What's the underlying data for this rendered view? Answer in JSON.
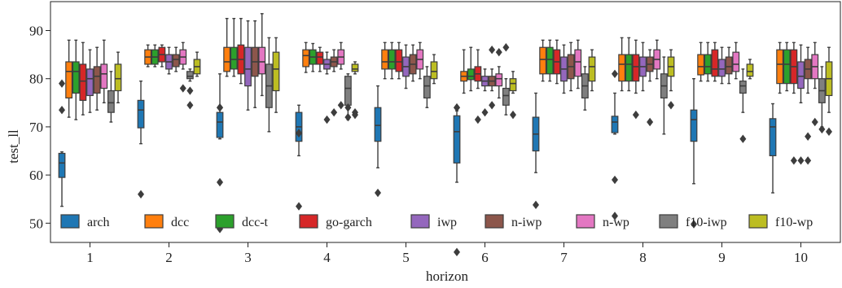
{
  "chart_data": {
    "type": "box",
    "xlabel": "horizon",
    "ylabel": "test_ll",
    "ylim": [
      46,
      96
    ],
    "yticks": [
      50,
      60,
      70,
      80,
      90
    ],
    "categories": [
      "1",
      "2",
      "3",
      "4",
      "5",
      "6",
      "7",
      "8",
      "9",
      "10"
    ],
    "grid": false,
    "legend_position": "bottom-left",
    "series": [
      {
        "name": "arch",
        "color": "#1f77b4",
        "boxes": [
          {
            "whislo": 53.5,
            "q1": 59.5,
            "med": 62.5,
            "q3": 64.5,
            "whishi": 64.8,
            "fliers": [
              73.5,
              79
            ]
          },
          {
            "whislo": 66.5,
            "q1": 69.8,
            "med": 73.5,
            "q3": 75.5,
            "whishi": 79.5,
            "fliers": [
              56
            ]
          },
          {
            "whislo": 67.5,
            "q1": 67.8,
            "med": 71,
            "q3": 73,
            "whishi": 81,
            "fliers": [
              58.5,
              48.8,
              74,
              74
            ]
          },
          {
            "whislo": 64,
            "q1": 67,
            "med": 70,
            "q3": 73,
            "whishi": 74.5,
            "fliers": [
              68.7,
              68.7,
              53.5
            ]
          },
          {
            "whislo": 61.5,
            "q1": 67,
            "med": 70.3,
            "q3": 74,
            "whishi": 78.5,
            "fliers": [
              56.3
            ]
          },
          {
            "whislo": 58.5,
            "q1": 62.5,
            "med": 69,
            "q3": 72.3,
            "whishi": 73.3,
            "fliers": [
              74,
              74,
              44
            ]
          },
          {
            "whislo": 60.5,
            "q1": 65,
            "med": 68.5,
            "q3": 72,
            "whishi": 77,
            "fliers": [
              53.8
            ]
          },
          {
            "whislo": 68.5,
            "q1": 68.8,
            "med": 71,
            "q3": 72.2,
            "whishi": 77,
            "fliers": [
              59,
              51.5,
              81
            ]
          },
          {
            "whislo": 58.2,
            "q1": 67,
            "med": 71.5,
            "q3": 73.5,
            "whishi": 80,
            "fliers": [
              49.8
            ]
          },
          {
            "whislo": 56.3,
            "q1": 64,
            "med": 70,
            "q3": 71.7,
            "whishi": 74.8,
            "fliers": []
          }
        ]
      },
      {
        "name": "dcc",
        "color": "#ff7f0e",
        "boxes": [
          {
            "whislo": 72,
            "q1": 76,
            "med": 81.5,
            "q3": 83.5,
            "whishi": 88,
            "fliers": []
          },
          {
            "whislo": 82.5,
            "q1": 83,
            "med": 84.5,
            "q3": 86,
            "whishi": 87,
            "fliers": []
          },
          {
            "whislo": 80.5,
            "q1": 81.5,
            "med": 83.5,
            "q3": 86.5,
            "whishi": 92.5,
            "fliers": []
          },
          {
            "whislo": 81.3,
            "q1": 82.5,
            "med": 84.8,
            "q3": 86,
            "whishi": 87.5,
            "fliers": []
          },
          {
            "whislo": 80,
            "q1": 82,
            "med": 83.5,
            "q3": 86,
            "whishi": 87.5,
            "fliers": []
          },
          {
            "whislo": 77,
            "q1": 79.5,
            "med": 80.5,
            "q3": 81.5,
            "whishi": 86,
            "fliers": []
          },
          {
            "whislo": 79.5,
            "q1": 81,
            "med": 84,
            "q3": 86.5,
            "whishi": 88,
            "fliers": []
          },
          {
            "whislo": 77.5,
            "q1": 79.5,
            "med": 83,
            "q3": 85,
            "whishi": 88.5,
            "fliers": []
          },
          {
            "whislo": 79.5,
            "q1": 80.8,
            "med": 82.5,
            "q3": 85,
            "whishi": 87.5,
            "fliers": []
          },
          {
            "whislo": 77,
            "q1": 79,
            "med": 83,
            "q3": 86,
            "whishi": 87.5,
            "fliers": []
          }
        ]
      },
      {
        "name": "dcc-t",
        "color": "#2ca02c",
        "boxes": [
          {
            "whislo": 71.5,
            "q1": 77,
            "med": 81.5,
            "q3": 83.5,
            "whishi": 88,
            "fliers": []
          },
          {
            "whislo": 82.5,
            "q1": 83,
            "med": 84.5,
            "q3": 86,
            "whishi": 87,
            "fliers": []
          },
          {
            "whislo": 80.5,
            "q1": 82,
            "med": 84,
            "q3": 86.5,
            "whishi": 92.5,
            "fliers": []
          },
          {
            "whislo": 81.5,
            "q1": 83,
            "med": 84.5,
            "q3": 86,
            "whishi": 87.3,
            "fliers": []
          },
          {
            "whislo": 80,
            "q1": 82,
            "med": 83.5,
            "q3": 86,
            "whishi": 87.5,
            "fliers": []
          },
          {
            "whislo": 77.5,
            "q1": 79.8,
            "med": 80.5,
            "q3": 82,
            "whishi": 86.5,
            "fliers": []
          },
          {
            "whislo": 79.5,
            "q1": 81,
            "med": 84,
            "q3": 86.5,
            "whishi": 88,
            "fliers": []
          },
          {
            "whislo": 77.5,
            "q1": 79.5,
            "med": 83,
            "q3": 85,
            "whishi": 88.5,
            "fliers": []
          },
          {
            "whislo": 79.5,
            "q1": 81,
            "med": 82.5,
            "q3": 85,
            "whishi": 87.5,
            "fliers": []
          },
          {
            "whislo": 77.5,
            "q1": 79,
            "med": 83,
            "q3": 86,
            "whishi": 87.5,
            "fliers": []
          }
        ]
      },
      {
        "name": "go-garch",
        "color": "#d62728",
        "boxes": [
          {
            "whislo": 72.5,
            "q1": 75.5,
            "med": 79.5,
            "q3": 83,
            "whishi": 87.5,
            "fliers": []
          },
          {
            "whislo": 82.5,
            "q1": 83.5,
            "med": 85,
            "q3": 86.5,
            "whishi": 87,
            "fliers": []
          },
          {
            "whislo": 79,
            "q1": 81,
            "med": 84,
            "q3": 87,
            "whishi": 92.5,
            "fliers": []
          },
          {
            "whislo": 81.5,
            "q1": 83,
            "med": 84.5,
            "q3": 85.5,
            "whishi": 86.5,
            "fliers": []
          },
          {
            "whislo": 80,
            "q1": 81.5,
            "med": 83.5,
            "q3": 86,
            "whishi": 87.5,
            "fliers": []
          },
          {
            "whislo": 78,
            "q1": 79.5,
            "med": 81,
            "q3": 82.5,
            "whishi": 86,
            "fliers": [
              71.5
            ]
          },
          {
            "whislo": 79,
            "q1": 81,
            "med": 83.5,
            "q3": 86,
            "whishi": 88,
            "fliers": []
          },
          {
            "whislo": 77,
            "q1": 79.5,
            "med": 82.5,
            "q3": 85,
            "whishi": 88,
            "fliers": [
              72.5
            ]
          },
          {
            "whislo": 79.5,
            "q1": 80.5,
            "med": 82,
            "q3": 86,
            "whishi": 87.5,
            "fliers": []
          },
          {
            "whislo": 77,
            "q1": 79,
            "med": 82.5,
            "q3": 86,
            "whishi": 87.5,
            "fliers": [
              63
            ]
          }
        ]
      },
      {
        "name": "iwp",
        "color": "#9467bd",
        "boxes": [
          {
            "whislo": 73,
            "q1": 76.5,
            "med": 80,
            "q3": 82,
            "whishi": 86,
            "fliers": []
          },
          {
            "whislo": 81,
            "q1": 82,
            "med": 83.5,
            "q3": 85,
            "whishi": 86.5,
            "fliers": []
          },
          {
            "whislo": 73.5,
            "q1": 78.5,
            "med": 82,
            "q3": 86.5,
            "whishi": 92,
            "fliers": []
          },
          {
            "whislo": 81,
            "q1": 82,
            "med": 83,
            "q3": 84,
            "whishi": 85.5,
            "fliers": [
              71.5
            ]
          },
          {
            "whislo": 78,
            "q1": 80.5,
            "med": 82.5,
            "q3": 84.5,
            "whishi": 87,
            "fliers": []
          },
          {
            "whislo": 77.5,
            "q1": 78.5,
            "med": 79.5,
            "q3": 80.5,
            "whishi": 82,
            "fliers": [
              73
            ]
          },
          {
            "whislo": 77,
            "q1": 79.5,
            "med": 82,
            "q3": 84.5,
            "whishi": 87,
            "fliers": []
          },
          {
            "whislo": 77.5,
            "q1": 80.5,
            "med": 82.5,
            "q3": 84.5,
            "whishi": 87.5,
            "fliers": []
          },
          {
            "whislo": 79,
            "q1": 80.5,
            "med": 82,
            "q3": 84,
            "whishi": 86.5,
            "fliers": []
          },
          {
            "whislo": 75,
            "q1": 78,
            "med": 80.5,
            "q3": 83.5,
            "whishi": 87,
            "fliers": [
              63
            ]
          }
        ]
      },
      {
        "name": "n-iwp",
        "color": "#8c564b",
        "boxes": [
          {
            "whislo": 73.5,
            "q1": 77,
            "med": 80.5,
            "q3": 82.5,
            "whishi": 86.5,
            "fliers": []
          },
          {
            "whislo": 81.5,
            "q1": 82.5,
            "med": 84,
            "q3": 85,
            "whishi": 86.5,
            "fliers": []
          },
          {
            "whislo": 74,
            "q1": 80.5,
            "med": 83.5,
            "q3": 86.5,
            "whishi": 92,
            "fliers": []
          },
          {
            "whislo": 81.5,
            "q1": 82.5,
            "med": 83.5,
            "q3": 84.5,
            "whishi": 86,
            "fliers": [
              73
            ]
          },
          {
            "whislo": 79.5,
            "q1": 81,
            "med": 83,
            "q3": 85,
            "whishi": 87,
            "fliers": []
          },
          {
            "whislo": 77.5,
            "q1": 78.5,
            "med": 79.5,
            "q3": 80.5,
            "whishi": 82,
            "fliers": [
              74.5,
              86
            ]
          },
          {
            "whislo": 77.5,
            "q1": 80,
            "med": 82.5,
            "q3": 85,
            "whishi": 87.5,
            "fliers": []
          },
          {
            "whislo": 79.5,
            "q1": 81.5,
            "med": 83,
            "q3": 84.5,
            "whishi": 86,
            "fliers": [
              71
            ]
          },
          {
            "whislo": 79,
            "q1": 81,
            "med": 82.5,
            "q3": 84.5,
            "whishi": 86.5,
            "fliers": []
          },
          {
            "whislo": 77,
            "q1": 80,
            "med": 82,
            "q3": 84,
            "whishi": 86.5,
            "fliers": [
              63,
              68
            ]
          }
        ]
      },
      {
        "name": "n-wp",
        "color": "#e377c2",
        "boxes": [
          {
            "whislo": 75,
            "q1": 78,
            "med": 81,
            "q3": 83,
            "whishi": 88,
            "fliers": []
          },
          {
            "whislo": 82,
            "q1": 83,
            "med": 84.5,
            "q3": 86,
            "whishi": 87.5,
            "fliers": [
              78
            ]
          },
          {
            "whislo": 76.5,
            "q1": 81,
            "med": 83.5,
            "q3": 86.5,
            "whishi": 93.5,
            "fliers": []
          },
          {
            "whislo": 82,
            "q1": 83,
            "med": 84.5,
            "q3": 86,
            "whishi": 87.5,
            "fliers": [
              74.5
            ]
          },
          {
            "whislo": 80,
            "q1": 82,
            "med": 84,
            "q3": 86,
            "whishi": 87.5,
            "fliers": []
          },
          {
            "whislo": 76,
            "q1": 78.5,
            "med": 80,
            "q3": 81,
            "whishi": 82.5,
            "fliers": [
              85.5
            ]
          },
          {
            "whislo": 78,
            "q1": 80.5,
            "med": 83.5,
            "q3": 86,
            "whishi": 88,
            "fliers": []
          },
          {
            "whislo": 80,
            "q1": 82,
            "med": 84,
            "q3": 86,
            "whishi": 88,
            "fliers": []
          },
          {
            "whislo": 80,
            "q1": 81.5,
            "med": 83,
            "q3": 85.5,
            "whishi": 87.5,
            "fliers": []
          },
          {
            "whislo": 78,
            "q1": 80,
            "med": 82.5,
            "q3": 85,
            "whishi": 87.5,
            "fliers": [
              71
            ]
          }
        ]
      },
      {
        "name": "f10-iwp",
        "color": "#7f7f7f",
        "boxes": [
          {
            "whislo": 71,
            "q1": 73,
            "med": 75,
            "q3": 77.5,
            "whishi": 81.5,
            "fliers": []
          },
          {
            "whislo": 79.5,
            "q1": 80,
            "med": 80.5,
            "q3": 81.5,
            "whishi": 82,
            "fliers": [
              77.5,
              74.5
            ]
          },
          {
            "whislo": 69,
            "q1": 74,
            "med": 78.5,
            "q3": 83,
            "whishi": 88.5,
            "fliers": []
          },
          {
            "whislo": 71.5,
            "q1": 74.5,
            "med": 78,
            "q3": 80.5,
            "whishi": 81,
            "fliers": [
              74,
              72
            ]
          },
          {
            "whislo": 74,
            "q1": 76,
            "med": 78.5,
            "q3": 80.5,
            "whishi": 82.5,
            "fliers": []
          },
          {
            "whislo": 72.5,
            "q1": 74.5,
            "med": 76.5,
            "q3": 78,
            "whishi": 80,
            "fliers": [
              86.5
            ]
          },
          {
            "whislo": 73.5,
            "q1": 76,
            "med": 78.5,
            "q3": 81,
            "whishi": 82.5,
            "fliers": []
          },
          {
            "whislo": 68.5,
            "q1": 76,
            "med": 78.5,
            "q3": 81,
            "whishi": 84.5,
            "fliers": []
          },
          {
            "whislo": 73,
            "q1": 77,
            "med": 78.5,
            "q3": 79.5,
            "whishi": 82,
            "fliers": [
              67.5
            ]
          },
          {
            "whislo": 70,
            "q1": 75,
            "med": 77.5,
            "q3": 80,
            "whishi": 82.5,
            "fliers": [
              69.5
            ]
          }
        ]
      },
      {
        "name": "f10-wp",
        "color": "#bcbd22",
        "boxes": [
          {
            "whislo": 75,
            "q1": 77.5,
            "med": 80,
            "q3": 83,
            "whishi": 85.5,
            "fliers": []
          },
          {
            "whislo": 80.5,
            "q1": 81,
            "med": 82.5,
            "q3": 84,
            "whishi": 85.5,
            "fliers": []
          },
          {
            "whislo": 73,
            "q1": 77.5,
            "med": 82,
            "q3": 85.5,
            "whishi": 88.5,
            "fliers": []
          },
          {
            "whislo": 81,
            "q1": 81.5,
            "med": 82,
            "q3": 83,
            "whishi": 83.5,
            "fliers": [
              73,
              72.5
            ]
          },
          {
            "whislo": 79,
            "q1": 80,
            "med": 81.5,
            "q3": 83.5,
            "whishi": 85,
            "fliers": []
          },
          {
            "whislo": 77,
            "q1": 77.5,
            "med": 79,
            "q3": 80,
            "whishi": 81.5,
            "fliers": [
              72.5
            ]
          },
          {
            "whislo": 77.5,
            "q1": 79.5,
            "med": 82.5,
            "q3": 84.5,
            "whishi": 86,
            "fliers": []
          },
          {
            "whislo": 77.5,
            "q1": 80.5,
            "med": 82.5,
            "q3": 84.5,
            "whishi": 86,
            "fliers": [
              74.5
            ]
          },
          {
            "whislo": 80,
            "q1": 80.5,
            "med": 81.5,
            "q3": 83,
            "whishi": 84,
            "fliers": []
          },
          {
            "whislo": 73,
            "q1": 76.5,
            "med": 80,
            "q3": 83.5,
            "whishi": 86.5,
            "fliers": [
              69
            ]
          }
        ]
      }
    ]
  }
}
